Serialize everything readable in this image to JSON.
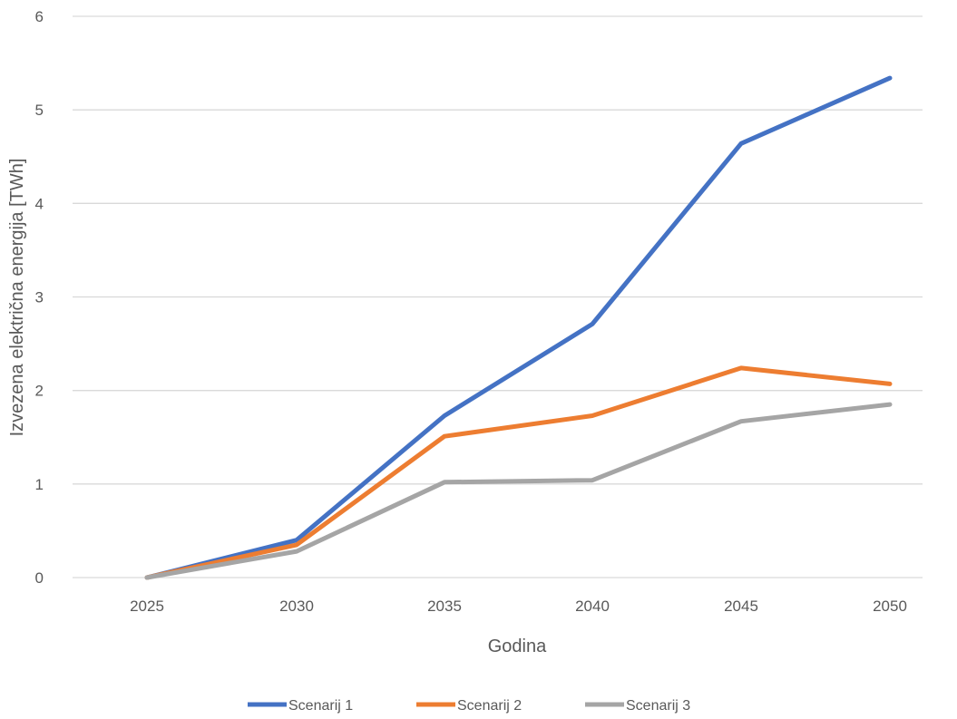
{
  "chart_data": {
    "type": "line",
    "title": "",
    "xlabel": "Godina",
    "ylabel": "Izvezena električna energija [TWh]",
    "categories": [
      "2025",
      "2030",
      "2035",
      "2040",
      "2045",
      "2050"
    ],
    "ylim": [
      0,
      6
    ],
    "yticks": [
      "0",
      "1",
      "2",
      "3",
      "4",
      "5",
      "6"
    ],
    "grid": true,
    "legend_position": "bottom",
    "series": [
      {
        "name": "Scenarij 1",
        "color": "#4472C4",
        "values": [
          0,
          0.4,
          1.73,
          2.71,
          4.64,
          5.34
        ]
      },
      {
        "name": "Scenarij 2",
        "color": "#ED7D31",
        "values": [
          0,
          0.35,
          1.51,
          1.73,
          2.24,
          2.07
        ]
      },
      {
        "name": "Scenarij 3",
        "color": "#A5A5A5",
        "values": [
          0,
          0.28,
          1.02,
          1.04,
          1.67,
          1.85
        ]
      }
    ]
  }
}
